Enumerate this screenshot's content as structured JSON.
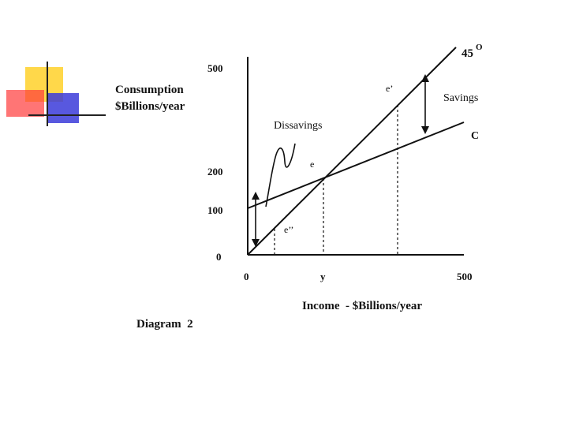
{
  "diagram": {
    "y_axis_title_line1": "Consumption",
    "y_axis_title_line2": "$Billions/year",
    "x_axis_title": "Income  - $Billions/year",
    "caption": "Diagram  2",
    "y_ticks": [
      "500",
      "200",
      "100",
      "0"
    ],
    "x_ticks": [
      "0",
      "y",
      "500"
    ],
    "line_45_label": "45",
    "line_45_degree": "O",
    "line_c_label": "C",
    "point_e": "e",
    "point_e_prime": "e’",
    "point_e_double_prime": "e’’",
    "savings_label": "Savings",
    "dissavings_label": "Dissavings"
  }
}
